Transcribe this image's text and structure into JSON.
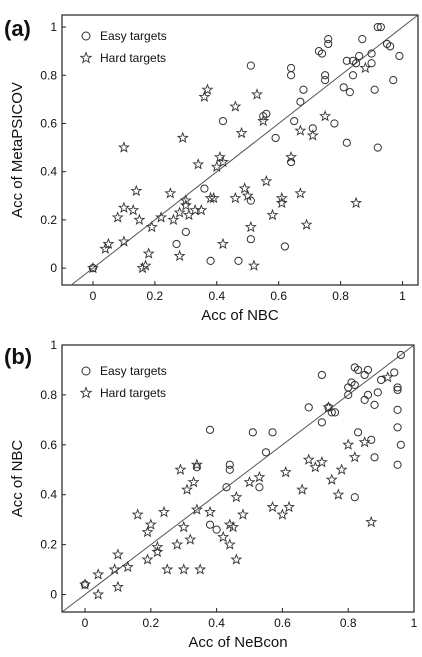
{
  "chart_data": [
    {
      "type": "scatter",
      "panel_label": "(a)",
      "xlabel": "Acc of NBC",
      "ylabel": "Acc of MetaPSICOV",
      "xlim": [
        -0.1,
        1.05
      ],
      "ylim": [
        -0.07,
        1.05
      ],
      "x_ticks": [
        "0",
        "0.2",
        "0.4",
        "0.6",
        "0.8",
        "1"
      ],
      "y_ticks": [
        "0",
        "0.2",
        "0.4",
        "0.6",
        "0.8",
        "1"
      ],
      "x_tick_values": [
        0,
        0.2,
        0.4,
        0.6,
        0.8,
        1
      ],
      "y_tick_values": [
        0,
        0.2,
        0.4,
        0.6,
        0.8,
        1
      ],
      "diagonal": true,
      "legend_position": "top-left",
      "series": [
        {
          "name": "Easy targets",
          "marker": "circle",
          "points": [
            [
              0.0,
              0.0
            ],
            [
              0.51,
              0.84
            ],
            [
              0.42,
              0.61
            ],
            [
              0.55,
              0.63
            ],
            [
              0.56,
              0.64
            ],
            [
              0.59,
              0.54
            ],
            [
              0.64,
              0.83
            ],
            [
              0.64,
              0.8
            ],
            [
              0.64,
              0.44
            ],
            [
              0.65,
              0.61
            ],
            [
              0.67,
              0.69
            ],
            [
              0.68,
              0.74
            ],
            [
              0.71,
              0.58
            ],
            [
              0.73,
              0.9
            ],
            [
              0.74,
              0.89
            ],
            [
              0.75,
              0.8
            ],
            [
              0.75,
              0.78
            ],
            [
              0.76,
              0.95
            ],
            [
              0.76,
              0.93
            ],
            [
              0.78,
              0.6
            ],
            [
              0.81,
              0.75
            ],
            [
              0.82,
              0.86
            ],
            [
              0.82,
              0.52
            ],
            [
              0.83,
              0.73
            ],
            [
              0.84,
              0.8
            ],
            [
              0.84,
              0.86
            ],
            [
              0.85,
              0.85
            ],
            [
              0.86,
              0.88
            ],
            [
              0.87,
              0.95
            ],
            [
              0.9,
              0.89
            ],
            [
              0.9,
              0.85
            ],
            [
              0.91,
              0.74
            ],
            [
              0.92,
              0.5
            ],
            [
              0.92,
              1.0
            ],
            [
              0.93,
              1.0
            ],
            [
              0.95,
              0.93
            ],
            [
              0.96,
              0.92
            ],
            [
              0.99,
              0.88
            ],
            [
              0.97,
              0.78
            ],
            [
              0.3,
              0.15
            ],
            [
              0.27,
              0.1
            ],
            [
              0.38,
              0.03
            ],
            [
              0.47,
              0.03
            ],
            [
              0.51,
              0.12
            ],
            [
              0.51,
              0.28
            ],
            [
              0.36,
              0.33
            ],
            [
              0.62,
              0.09
            ]
          ]
        },
        {
          "name": "Hard targets",
          "marker": "star",
          "points": [
            [
              0.0,
              0.0
            ],
            [
              0.04,
              0.08
            ],
            [
              0.05,
              0.1
            ],
            [
              0.08,
              0.21
            ],
            [
              0.1,
              0.5
            ],
            [
              0.1,
              0.25
            ],
            [
              0.1,
              0.11
            ],
            [
              0.13,
              0.24
            ],
            [
              0.14,
              0.32
            ],
            [
              0.15,
              0.2
            ],
            [
              0.16,
              0.0
            ],
            [
              0.17,
              0.01
            ],
            [
              0.18,
              0.06
            ],
            [
              0.19,
              0.17
            ],
            [
              0.22,
              0.21
            ],
            [
              0.25,
              0.31
            ],
            [
              0.26,
              0.2
            ],
            [
              0.28,
              0.05
            ],
            [
              0.28,
              0.23
            ],
            [
              0.29,
              0.54
            ],
            [
              0.3,
              0.26
            ],
            [
              0.3,
              0.28
            ],
            [
              0.31,
              0.22
            ],
            [
              0.33,
              0.24
            ],
            [
              0.34,
              0.43
            ],
            [
              0.35,
              0.24
            ],
            [
              0.36,
              0.71
            ],
            [
              0.37,
              0.74
            ],
            [
              0.38,
              0.29
            ],
            [
              0.39,
              0.29
            ],
            [
              0.4,
              0.42
            ],
            [
              0.41,
              0.46
            ],
            [
              0.42,
              0.1
            ],
            [
              0.42,
              0.44
            ],
            [
              0.46,
              0.67
            ],
            [
              0.46,
              0.29
            ],
            [
              0.48,
              0.56
            ],
            [
              0.49,
              0.33
            ],
            [
              0.5,
              0.3
            ],
            [
              0.51,
              0.17
            ],
            [
              0.52,
              0.01
            ],
            [
              0.53,
              0.72
            ],
            [
              0.55,
              0.61
            ],
            [
              0.56,
              0.36
            ],
            [
              0.58,
              0.22
            ],
            [
              0.61,
              0.27
            ],
            [
              0.61,
              0.29
            ],
            [
              0.64,
              0.46
            ],
            [
              0.67,
              0.31
            ],
            [
              0.67,
              0.57
            ],
            [
              0.69,
              0.18
            ],
            [
              0.71,
              0.55
            ],
            [
              0.75,
              0.63
            ],
            [
              0.85,
              0.27
            ],
            [
              0.88,
              0.83
            ]
          ]
        }
      ]
    },
    {
      "type": "scatter",
      "panel_label": "(b)",
      "xlabel": "Acc of NeBcon",
      "ylabel": "Acc of NBC",
      "xlim": [
        -0.07,
        1.0
      ],
      "ylim": [
        -0.07,
        1.0
      ],
      "x_ticks": [
        "0",
        "0.2",
        "0.4",
        "0.6",
        "0.8",
        "1"
      ],
      "y_ticks": [
        "0",
        "0.2",
        "0.4",
        "0.6",
        "0.8",
        "1"
      ],
      "x_tick_values": [
        0,
        0.2,
        0.4,
        0.6,
        0.8,
        1
      ],
      "y_tick_values": [
        0,
        0.2,
        0.4,
        0.6,
        0.8,
        1
      ],
      "diagonal": true,
      "legend_position": "top-left",
      "series": [
        {
          "name": "Easy targets",
          "marker": "circle",
          "points": [
            [
              0.0,
              0.04
            ],
            [
              0.34,
              0.51
            ],
            [
              0.38,
              0.66
            ],
            [
              0.38,
              0.28
            ],
            [
              0.4,
              0.26
            ],
            [
              0.43,
              0.43
            ],
            [
              0.44,
              0.52
            ],
            [
              0.44,
              0.5
            ],
            [
              0.51,
              0.65
            ],
            [
              0.53,
              0.43
            ],
            [
              0.55,
              0.57
            ],
            [
              0.57,
              0.65
            ],
            [
              0.68,
              0.75
            ],
            [
              0.72,
              0.88
            ],
            [
              0.72,
              0.69
            ],
            [
              0.74,
              0.75
            ],
            [
              0.75,
              0.73
            ],
            [
              0.76,
              0.73
            ],
            [
              0.8,
              0.8
            ],
            [
              0.8,
              0.83
            ],
            [
              0.81,
              0.85
            ],
            [
              0.82,
              0.39
            ],
            [
              0.82,
              0.84
            ],
            [
              0.82,
              0.91
            ],
            [
              0.83,
              0.9
            ],
            [
              0.83,
              0.65
            ],
            [
              0.85,
              0.78
            ],
            [
              0.86,
              0.9
            ],
            [
              0.86,
              0.8
            ],
            [
              0.87,
              0.62
            ],
            [
              0.88,
              0.55
            ],
            [
              0.88,
              0.76
            ],
            [
              0.89,
              0.81
            ],
            [
              0.9,
              0.86
            ],
            [
              0.94,
              0.89
            ],
            [
              0.95,
              0.83
            ],
            [
              0.95,
              0.82
            ],
            [
              0.95,
              0.74
            ],
            [
              0.95,
              0.67
            ],
            [
              0.96,
              0.96
            ],
            [
              0.96,
              0.6
            ],
            [
              0.95,
              0.52
            ],
            [
              0.85,
              0.88
            ]
          ]
        },
        {
          "name": "Hard targets",
          "marker": "star",
          "points": [
            [
              0.0,
              0.04
            ],
            [
              0.04,
              0.0
            ],
            [
              0.04,
              0.08
            ],
            [
              0.09,
              0.1
            ],
            [
              0.1,
              0.03
            ],
            [
              0.1,
              0.16
            ],
            [
              0.13,
              0.11
            ],
            [
              0.16,
              0.32
            ],
            [
              0.19,
              0.14
            ],
            [
              0.19,
              0.25
            ],
            [
              0.2,
              0.28
            ],
            [
              0.22,
              0.17
            ],
            [
              0.22,
              0.19
            ],
            [
              0.24,
              0.33
            ],
            [
              0.25,
              0.1
            ],
            [
              0.28,
              0.2
            ],
            [
              0.29,
              0.5
            ],
            [
              0.3,
              0.1
            ],
            [
              0.3,
              0.27
            ],
            [
              0.31,
              0.42
            ],
            [
              0.32,
              0.22
            ],
            [
              0.33,
              0.45
            ],
            [
              0.34,
              0.34
            ],
            [
              0.34,
              0.52
            ],
            [
              0.35,
              0.1
            ],
            [
              0.38,
              0.33
            ],
            [
              0.42,
              0.23
            ],
            [
              0.44,
              0.2
            ],
            [
              0.44,
              0.28
            ],
            [
              0.45,
              0.27
            ],
            [
              0.46,
              0.14
            ],
            [
              0.46,
              0.39
            ],
            [
              0.48,
              0.32
            ],
            [
              0.5,
              0.45
            ],
            [
              0.53,
              0.47
            ],
            [
              0.57,
              0.35
            ],
            [
              0.6,
              0.32
            ],
            [
              0.61,
              0.49
            ],
            [
              0.62,
              0.35
            ],
            [
              0.66,
              0.42
            ],
            [
              0.68,
              0.54
            ],
            [
              0.7,
              0.51
            ],
            [
              0.72,
              0.53
            ],
            [
              0.74,
              0.75
            ],
            [
              0.75,
              0.46
            ],
            [
              0.77,
              0.4
            ],
            [
              0.78,
              0.5
            ],
            [
              0.8,
              0.6
            ],
            [
              0.82,
              0.55
            ],
            [
              0.85,
              0.61
            ],
            [
              0.87,
              0.29
            ],
            [
              0.92,
              0.87
            ]
          ]
        }
      ]
    }
  ]
}
